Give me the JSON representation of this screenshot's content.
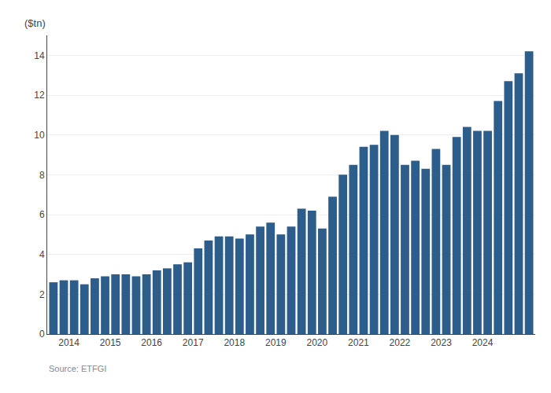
{
  "chart_data": {
    "type": "bar",
    "ylabel": "($tn)",
    "annotations": [
      "Source: ETFGI"
    ],
    "categories": [
      "2014",
      null,
      null,
      null,
      "2015",
      null,
      null,
      null,
      "2016",
      null,
      null,
      null,
      "2017",
      null,
      null,
      null,
      "2018",
      null,
      null,
      null,
      "2019",
      null,
      null,
      null,
      "2020",
      null,
      null,
      null,
      "2021",
      null,
      null,
      null,
      "2022",
      null,
      null,
      null,
      "2023",
      null,
      null,
      null,
      "2024",
      null,
      null,
      null,
      null,
      null,
      null
    ],
    "values": [
      2.6,
      2.7,
      2.7,
      2.5,
      2.8,
      2.9,
      3.0,
      3.0,
      2.9,
      3.0,
      3.2,
      3.3,
      3.5,
      3.6,
      4.3,
      4.7,
      4.9,
      4.9,
      4.8,
      5.0,
      5.4,
      5.6,
      5.0,
      5.4,
      6.3,
      6.2,
      5.3,
      6.9,
      8.0,
      8.5,
      9.4,
      9.5,
      10.2,
      10.0,
      8.5,
      8.7,
      8.3,
      9.3,
      8.5,
      9.9,
      10.4,
      10.2,
      10.2,
      11.7,
      12.7,
      13.1,
      14.2
    ],
    "color": "#2d5d8a",
    "ylim": [
      0,
      15
    ],
    "yticks": [
      0,
      2,
      4,
      6,
      8,
      10,
      12,
      14
    ],
    "grid": true
  }
}
